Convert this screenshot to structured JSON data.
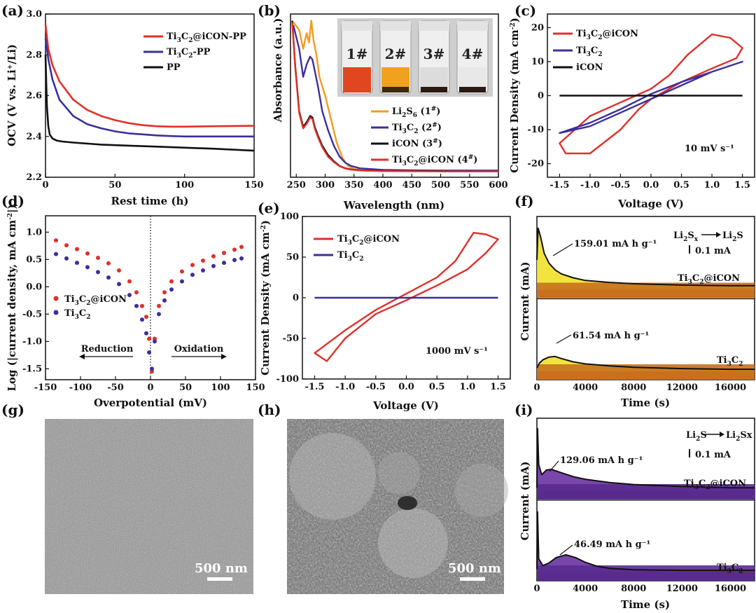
{
  "panel_labels": [
    "(a)",
    "(b)",
    "(c)",
    "(d)",
    "(e)",
    "(f)",
    "(g)",
    "(h)",
    "(i)"
  ],
  "colors": {
    "red": "#e0302a",
    "blue": "#3b2f9e",
    "black": "#111111",
    "orange": "#f39a1e",
    "purple": "#5a2b8f",
    "yellow": "#f2e02a",
    "brown": "#c8701e",
    "purple_fill": "#6a33a3",
    "magenta": "#b030b0"
  },
  "chart_data": [
    {
      "id": "a",
      "type": "line",
      "xlabel": "Rest time (h)",
      "ylabel": "OCV (V vs. Li⁺/Li)",
      "xlim": [
        0,
        150
      ],
      "ylim": [
        2.2,
        3.0
      ],
      "xticks": [
        0,
        50,
        100,
        150
      ],
      "yticks": [
        2.2,
        2.4,
        2.6,
        2.8,
        3.0
      ],
      "legend_position": "top-right",
      "series": [
        {
          "name": "Ti3C2@iCON-PP",
          "color": "red",
          "x": [
            0,
            2,
            5,
            10,
            20,
            30,
            40,
            50,
            60,
            70,
            80,
            90,
            100,
            120,
            150
          ],
          "y": [
            2.95,
            2.83,
            2.75,
            2.67,
            2.58,
            2.53,
            2.5,
            2.48,
            2.465,
            2.455,
            2.45,
            2.448,
            2.448,
            2.45,
            2.452
          ]
        },
        {
          "name": "Ti3C2-PP",
          "color": "blue",
          "x": [
            0,
            2,
            5,
            10,
            20,
            30,
            40,
            50,
            60,
            70,
            80,
            90,
            100,
            120,
            150
          ],
          "y": [
            2.88,
            2.78,
            2.68,
            2.58,
            2.5,
            2.46,
            2.44,
            2.425,
            2.415,
            2.41,
            2.405,
            2.402,
            2.4,
            2.4,
            2.4
          ]
        },
        {
          "name": "PP",
          "color": "black",
          "x": [
            0,
            1,
            2,
            3,
            5,
            8,
            12,
            20,
            40,
            60,
            80,
            100,
            120,
            150
          ],
          "y": [
            2.8,
            2.55,
            2.45,
            2.41,
            2.39,
            2.38,
            2.375,
            2.37,
            2.36,
            2.355,
            2.35,
            2.345,
            2.34,
            2.33
          ]
        }
      ]
    },
    {
      "id": "b",
      "type": "line",
      "xlabel": "Wavelength (nm)",
      "ylabel": "Absorbance (a.u.)",
      "xlim": [
        240,
        600
      ],
      "xticks": [
        250,
        300,
        350,
        400,
        450,
        500,
        550,
        600
      ],
      "inset_vial_labels": [
        "1#",
        "2#",
        "3#",
        "4#"
      ],
      "inset_vial_colors": [
        "#e0461f",
        "#f0a21e",
        "#dcdcdc",
        "#e8e8e8"
      ],
      "legend_position": "bottom-right",
      "series": [
        {
          "name": "Li2S6 (1#)",
          "color": "orange",
          "x": [
            245,
            255,
            262,
            268,
            272,
            276,
            280,
            285,
            290,
            300,
            310,
            320,
            330,
            340,
            350,
            370,
            400,
            450,
            500,
            550,
            600
          ],
          "y": [
            0.97,
            0.92,
            0.8,
            0.9,
            0.84,
            0.98,
            0.85,
            0.76,
            0.62,
            0.5,
            0.35,
            0.2,
            0.1,
            0.05,
            0.03,
            0.02,
            0.02,
            0.02,
            0.02,
            0.02,
            0.02
          ]
        },
        {
          "name": "Ti3C2 (2#)",
          "color": "blue",
          "x": [
            245,
            255,
            262,
            268,
            274,
            278,
            282,
            288,
            295,
            305,
            315,
            325,
            335,
            345,
            360,
            380,
            400,
            450,
            500,
            550,
            600
          ],
          "y": [
            0.95,
            0.8,
            0.62,
            0.7,
            0.75,
            0.73,
            0.66,
            0.55,
            0.4,
            0.28,
            0.18,
            0.11,
            0.07,
            0.05,
            0.035,
            0.03,
            0.025,
            0.022,
            0.02,
            0.02,
            0.02
          ]
        },
        {
          "name": "iCON (3#)",
          "color": "black",
          "x": [
            243,
            248,
            255,
            262,
            268,
            274,
            278,
            282,
            288,
            295,
            305,
            315,
            325,
            335,
            345,
            360,
            380,
            400,
            450,
            500,
            550,
            600
          ],
          "y": [
            0.98,
            0.7,
            0.4,
            0.3,
            0.33,
            0.37,
            0.36,
            0.3,
            0.24,
            0.18,
            0.12,
            0.08,
            0.05,
            0.035,
            0.028,
            0.022,
            0.02,
            0.018,
            0.017,
            0.016,
            0.016,
            0.016
          ]
        },
        {
          "name": "Ti3C2@iCON (4#)",
          "color": "red",
          "x": [
            243,
            248,
            255,
            262,
            268,
            274,
            278,
            282,
            288,
            295,
            305,
            315,
            325,
            335,
            345,
            360,
            380,
            400,
            450,
            500,
            550,
            600
          ],
          "y": [
            0.97,
            0.69,
            0.39,
            0.29,
            0.32,
            0.36,
            0.35,
            0.29,
            0.23,
            0.17,
            0.11,
            0.075,
            0.048,
            0.033,
            0.026,
            0.021,
            0.019,
            0.017,
            0.016,
            0.015,
            0.015,
            0.015
          ]
        }
      ]
    },
    {
      "id": "c",
      "type": "line",
      "xlabel": "Voltage (V)",
      "ylabel": "Current Density (mA cm⁻²)",
      "xlim": [
        -1.7,
        1.7
      ],
      "ylim": [
        -24,
        24
      ],
      "xticks": [
        -1.5,
        -1.0,
        -0.5,
        0.0,
        0.5,
        1.0,
        1.5
      ],
      "yticks": [
        -20,
        -10,
        0,
        10,
        20
      ],
      "annotation": "10 mV s⁻¹",
      "legend_position": "top-left",
      "series": [
        {
          "name": "Ti3C2@iCON",
          "color": "red",
          "x": [
            -1.5,
            -1.0,
            -0.5,
            0.0,
            0.3,
            0.6,
            1.0,
            1.3,
            1.5,
            1.4,
            1.0,
            0.5,
            0.0,
            -0.2,
            -0.5,
            -1.0,
            -1.4,
            -1.5
          ],
          "y": [
            -14,
            -6,
            -2,
            2,
            6,
            12,
            18,
            17,
            14,
            11,
            8,
            4,
            -1,
            -4,
            -10,
            -17,
            -17,
            -14
          ]
        },
        {
          "name": "Ti3C2",
          "color": "blue",
          "x": [
            -1.5,
            -1.0,
            -0.5,
            0.0,
            0.5,
            1.0,
            1.5,
            1.0,
            0.5,
            0.0,
            -0.5,
            -1.0,
            -1.5
          ],
          "y": [
            -11,
            -8,
            -4,
            0.5,
            4,
            7,
            10,
            7,
            3,
            -1,
            -5,
            -9,
            -11
          ]
        },
        {
          "name": "iCON",
          "color": "black",
          "x": [
            -1.5,
            1.5
          ],
          "y": [
            0,
            0
          ]
        }
      ]
    },
    {
      "id": "d",
      "type": "scatter",
      "xlabel": "Overpotential (mV)",
      "ylabel": "Log (|current density, mA cm⁻²|)",
      "xlim": [
        -150,
        150
      ],
      "ylim": [
        -1.7,
        1.3
      ],
      "xticks": [
        -150,
        -100,
        -50,
        0,
        50,
        100,
        150
      ],
      "yticks": [
        -1.5,
        -1.0,
        -0.5,
        0.0,
        0.5,
        1.0
      ],
      "arrow_labels": [
        "Reduction",
        "Oxidation"
      ],
      "legend_position": "middle-left",
      "series": [
        {
          "name": "Ti3C2@iCON",
          "color": "red",
          "x": [
            -135,
            -120,
            -105,
            -90,
            -75,
            -60,
            -45,
            -30,
            -20,
            -12,
            -6,
            -2,
            2,
            6,
            12,
            20,
            30,
            45,
            60,
            75,
            90,
            105,
            120,
            130
          ],
          "y": [
            0.85,
            0.76,
            0.69,
            0.61,
            0.53,
            0.43,
            0.3,
            0.1,
            -0.1,
            -0.35,
            -0.55,
            -0.95,
            -1.55,
            -0.95,
            -0.35,
            -0.1,
            0.1,
            0.28,
            0.4,
            0.48,
            0.56,
            0.62,
            0.68,
            0.73
          ]
        },
        {
          "name": "Ti3C2",
          "color": "blue",
          "x": [
            -135,
            -120,
            -105,
            -90,
            -75,
            -60,
            -45,
            -30,
            -20,
            -12,
            -6,
            -2,
            2,
            6,
            12,
            20,
            30,
            45,
            60,
            75,
            90,
            105,
            120,
            130
          ],
          "y": [
            0.6,
            0.52,
            0.44,
            0.36,
            0.27,
            0.17,
            0.05,
            -0.15,
            -0.35,
            -0.6,
            -0.85,
            -1.2,
            -1.5,
            -1.0,
            -0.5,
            -0.25,
            -0.05,
            0.1,
            0.22,
            0.3,
            0.38,
            0.44,
            0.49,
            0.52
          ]
        }
      ]
    },
    {
      "id": "e",
      "type": "line",
      "xlabel": "Voltage (V)",
      "ylabel": "Current Density (mA cm⁻²)",
      "xlim": [
        -1.7,
        1.7
      ],
      "ylim": [
        -100,
        100
      ],
      "xticks": [
        -1.5,
        -1.0,
        -0.5,
        0.0,
        0.5,
        1.0,
        1.5
      ],
      "yticks": [
        -100,
        -50,
        0,
        50,
        100
      ],
      "annotation": "1000 mV s⁻¹",
      "legend_position": "top-left",
      "series": [
        {
          "name": "Ti3C2@iCON",
          "color": "red",
          "x": [
            -1.5,
            -1.0,
            -0.5,
            0.0,
            0.5,
            0.8,
            1.1,
            1.3,
            1.5,
            1.3,
            1.0,
            0.5,
            0.0,
            -0.5,
            -1.0,
            -1.3,
            -1.5
          ],
          "y": [
            -68,
            -40,
            -15,
            5,
            25,
            45,
            80,
            78,
            72,
            55,
            35,
            15,
            -3,
            -20,
            -50,
            -78,
            -68
          ]
        },
        {
          "name": "Ti3C2",
          "color": "blue",
          "x": [
            -1.5,
            1.5
          ],
          "y": [
            0,
            0
          ]
        }
      ]
    },
    {
      "id": "f",
      "type": "area",
      "xlabel": "Time (s)",
      "ylabel": "Current (mA)",
      "xlim": [
        0,
        18000
      ],
      "xticks": [
        0,
        4000,
        8000,
        12000,
        16000
      ],
      "annotations": [
        "159.01 mA h g⁻¹",
        "61.54 mA h g⁻¹",
        "Li₂Sₓ→Li₂S",
        "0.1 mA"
      ],
      "series": [
        {
          "name": "Ti3C2@iCON",
          "color": "black",
          "x": [
            0,
            100,
            300,
            600,
            1000,
            1500,
            2000,
            3000,
            4000,
            6000,
            8000,
            12000,
            16000,
            18000
          ],
          "y": [
            0.45,
            0.93,
            0.8,
            0.55,
            0.4,
            0.3,
            0.24,
            0.18,
            0.14,
            0.11,
            0.09,
            0.07,
            0.06,
            0.06
          ]
        },
        {
          "name": "Ti3C2",
          "color": "black",
          "x": [
            0,
            200,
            500,
            1000,
            1500,
            2000,
            3000,
            4000,
            6000,
            8000,
            12000,
            16000,
            18000
          ],
          "y": [
            0.05,
            0.12,
            0.17,
            0.21,
            0.22,
            0.19,
            0.14,
            0.11,
            0.08,
            0.06,
            0.04,
            0.03,
            0.03
          ]
        }
      ]
    },
    {
      "id": "i",
      "type": "area",
      "xlabel": "Time (s)",
      "ylabel": "Current (mA)",
      "xlim": [
        0,
        18000
      ],
      "xticks": [
        0,
        4000,
        8000,
        12000,
        16000
      ],
      "annotations": [
        "129.06 mA h g⁻¹",
        "46.49 mA h g⁻¹",
        "Li₂S→Li₂Sx",
        "0.1 mA"
      ],
      "series": [
        {
          "name": "Ti3C2@iCON",
          "color": "black",
          "x": [
            0,
            50,
            150,
            400,
            800,
            1200,
            2000,
            3000,
            4000,
            6000,
            8000,
            12000,
            16000,
            18000
          ],
          "y": [
            0.05,
            0.95,
            0.4,
            0.25,
            0.32,
            0.33,
            0.28,
            0.22,
            0.18,
            0.13,
            0.1,
            0.07,
            0.05,
            0.05
          ]
        },
        {
          "name": "Ti3C2",
          "color": "black",
          "x": [
            0,
            50,
            150,
            500,
            1000,
            1600,
            2400,
            3200,
            4000,
            5000,
            6000,
            8000,
            12000,
            16000,
            18000
          ],
          "y": [
            0.05,
            0.9,
            0.2,
            0.1,
            0.14,
            0.22,
            0.26,
            0.22,
            0.15,
            0.09,
            0.06,
            0.04,
            0.03,
            0.03,
            0.03
          ]
        }
      ]
    }
  ],
  "sem": [
    {
      "id": "g",
      "scale_label": "500 nm"
    },
    {
      "id": "h",
      "scale_label": "500 nm"
    }
  ]
}
